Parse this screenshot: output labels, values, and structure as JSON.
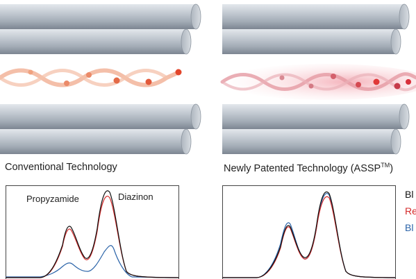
{
  "captions": {
    "left": "Conventional Technology",
    "right": "Newly Patented Technology (ASSP",
    "right_tm": "TM",
    "right_close": ")"
  },
  "peaks": {
    "first": "Propyzamide",
    "second": "Diazinon"
  },
  "legend": [
    {
      "text": "Bl",
      "color": "#111111"
    },
    {
      "text": "Re",
      "color": "#d42a2a"
    },
    {
      "text": "Bl",
      "color": "#2a63a8"
    }
  ],
  "colors": {
    "rod": "#9aa3ad",
    "ion": "#e4502f",
    "black": "#111111",
    "red": "#d42a2a",
    "blue": "#2a63a8"
  }
}
